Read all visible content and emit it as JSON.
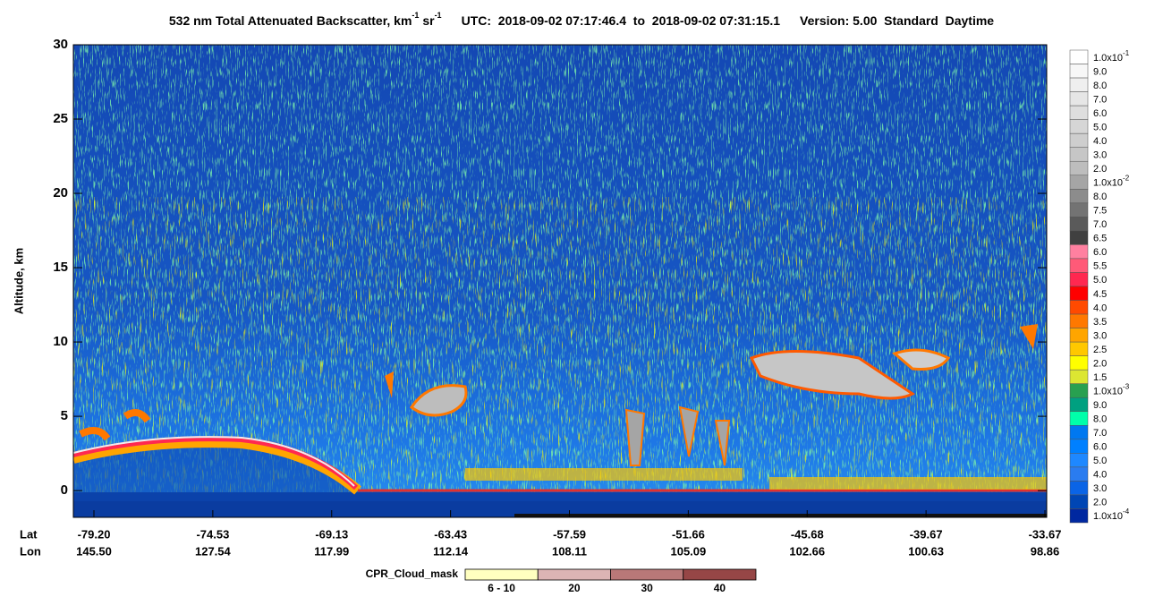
{
  "chart_data": {
    "type": "heatmap",
    "title": {
      "main": "532 nm Total Attenuated Backscatter, km",
      "exp1": "-1",
      "unit2": " sr",
      "exp2": "-1",
      "utc": "UTC:  2018-09-02 07:17:46.4  to  2018-09-02 07:31:15.1",
      "version": "Version: 5.00  Standard  Daytime"
    },
    "y_label": "Altitude, km",
    "ylim": [
      -1.8,
      30
    ],
    "yticks": [
      0,
      5,
      10,
      15,
      20,
      25,
      30
    ],
    "x_row_labels": [
      "Lat",
      "Lon"
    ],
    "lat": [
      "-79.20",
      "-74.53",
      "-69.13",
      "-63.43",
      "-57.59",
      "-51.66",
      "-45.68",
      "-39.67",
      "-33.67"
    ],
    "lon": [
      "145.50",
      "127.54",
      "117.99",
      "112.14",
      "108.11",
      "105.09",
      "102.66",
      "100.63",
      "98.86"
    ],
    "colorbar": [
      {
        "label": "1.0x10",
        "exp": "-1",
        "color": "#ffffff"
      },
      {
        "label": "9.0",
        "color": "#f7f7f7"
      },
      {
        "label": "8.0",
        "color": "#efefef"
      },
      {
        "label": "7.0",
        "color": "#e6e6e6"
      },
      {
        "label": "6.0",
        "color": "#dedede"
      },
      {
        "label": "5.0",
        "color": "#d6d6d6"
      },
      {
        "label": "4.0",
        "color": "#cecece"
      },
      {
        "label": "3.0",
        "color": "#c6c6c6"
      },
      {
        "label": "2.0",
        "color": "#bdbdbd"
      },
      {
        "label": "1.0x10",
        "exp": "-2",
        "color": "#a5a5a5"
      },
      {
        "label": "8.0",
        "color": "#8c8c8c"
      },
      {
        "label": "7.5",
        "color": "#737373"
      },
      {
        "label": "7.0",
        "color": "#5a5a5a"
      },
      {
        "label": "6.5",
        "color": "#404040"
      },
      {
        "label": "6.0",
        "color": "#ff80a0"
      },
      {
        "label": "5.5",
        "color": "#ff5a78"
      },
      {
        "label": "5.0",
        "color": "#ff2850"
      },
      {
        "label": "4.5",
        "color": "#ff0000"
      },
      {
        "label": "4.0",
        "color": "#ff4a00"
      },
      {
        "label": "3.5",
        "color": "#ff7800"
      },
      {
        "label": "3.0",
        "color": "#ffa500"
      },
      {
        "label": "2.5",
        "color": "#ffc800"
      },
      {
        "label": "2.0",
        "color": "#ffff00"
      },
      {
        "label": "1.5",
        "color": "#dce632"
      },
      {
        "label": "1.0x10",
        "exp": "-3",
        "color": "#28a050"
      },
      {
        "label": "9.0",
        "color": "#00a080"
      },
      {
        "label": "8.0",
        "color": "#00ffaa"
      },
      {
        "label": "7.0",
        "color": "#0078f0"
      },
      {
        "label": "6.0",
        "color": "#0080ff"
      },
      {
        "label": "5.0",
        "color": "#1e88ff"
      },
      {
        "label": "4.0",
        "color": "#2a7cf0"
      },
      {
        "label": "3.0",
        "color": "#0a64e6"
      },
      {
        "label": "2.0",
        "color": "#0046b4"
      },
      {
        "label": "1.0x10",
        "exp": "-4",
        "color": "#0028a0"
      }
    ],
    "cpr_legend": {
      "title": "CPR_Cloud_mask",
      "items": [
        {
          "label": "6 - 10",
          "color": "#ffffc0"
        },
        {
          "label": "20",
          "color": "#dcb4b4"
        },
        {
          "label": "30",
          "color": "#b97878"
        },
        {
          "label": "40",
          "color": "#964646"
        }
      ]
    }
  }
}
